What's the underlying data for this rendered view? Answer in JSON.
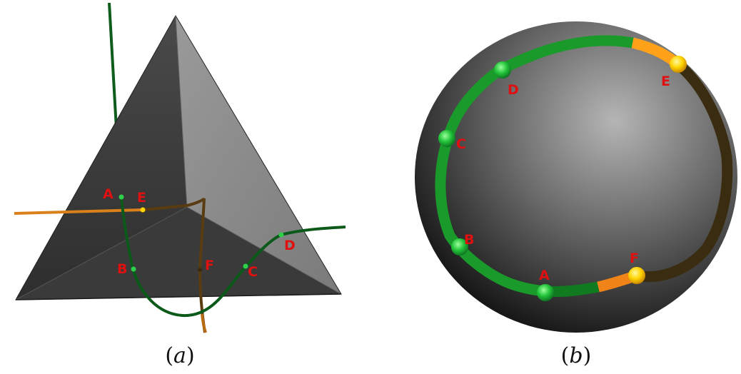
{
  "panel_a": {
    "caption_letter": "a",
    "points": [
      "A",
      "B",
      "C",
      "D",
      "E",
      "F"
    ]
  },
  "panel_b": {
    "caption_letter": "b",
    "points": [
      "A",
      "B",
      "C",
      "D",
      "E",
      "F"
    ]
  },
  "colors": {
    "label": "#e01010",
    "green_curve": "#0b6a1e",
    "green_bright": "#22d43a",
    "orange_curve": "#e08418",
    "yellow_marker": "#ffd400",
    "dark_curve": "#3a2a10"
  }
}
